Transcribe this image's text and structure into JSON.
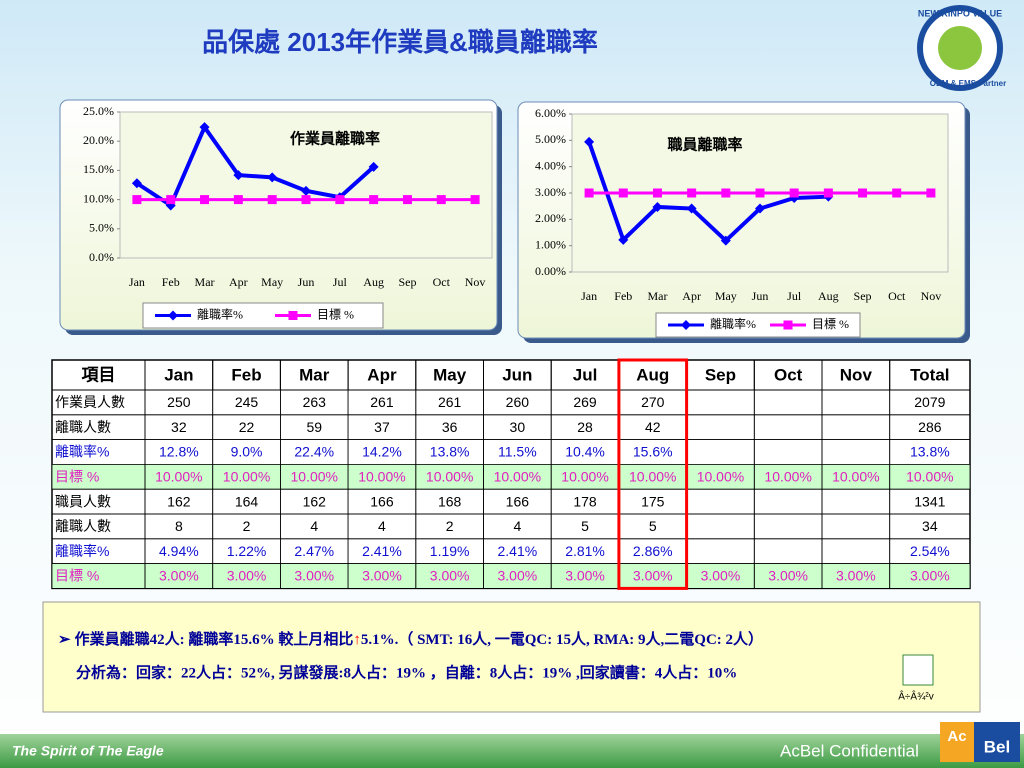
{
  "title": "品保處 2013年作業員&職員離職率",
  "chart_data": [
    {
      "type": "line",
      "title": "作業員離職率",
      "categories": [
        "Jan",
        "Feb",
        "Mar",
        "Apr",
        "May",
        "Jun",
        "Jul",
        "Aug",
        "Sep",
        "Oct",
        "Nov"
      ],
      "series": [
        {
          "name": "離職率%",
          "color": "#0000ff",
          "marker": "diamond",
          "values": [
            12.8,
            9.0,
            22.4,
            14.2,
            13.8,
            11.5,
            10.4,
            15.6,
            null,
            null,
            null
          ]
        },
        {
          "name": "目標 %",
          "color": "#ff00ff",
          "marker": "square",
          "values": [
            10,
            10,
            10,
            10,
            10,
            10,
            10,
            10,
            10,
            10,
            10
          ]
        }
      ],
      "ylim": [
        0,
        25
      ],
      "yticks": [
        {
          "value": 0,
          "label": "0.0%"
        },
        {
          "value": 5,
          "label": "5.0%"
        },
        {
          "value": 10,
          "label": "10.0%"
        },
        {
          "value": 15,
          "label": "15.0%"
        },
        {
          "value": 20,
          "label": "20.0%"
        },
        {
          "value": 25,
          "label": "25.0%"
        }
      ],
      "grid": false,
      "legend": "bottom"
    },
    {
      "type": "line",
      "title": "職員離職率",
      "categories": [
        "Jan",
        "Feb",
        "Mar",
        "Apr",
        "May",
        "Jun",
        "Jul",
        "Aug",
        "Sep",
        "Oct",
        "Nov"
      ],
      "series": [
        {
          "name": "離職率%",
          "color": "#0000ff",
          "marker": "diamond",
          "values": [
            4.94,
            1.22,
            2.47,
            2.41,
            1.19,
            2.41,
            2.81,
            2.86,
            null,
            null,
            null
          ]
        },
        {
          "name": "目標 %",
          "color": "#ff00ff",
          "marker": "square",
          "values": [
            3,
            3,
            3,
            3,
            3,
            3,
            3,
            3,
            3,
            3,
            3
          ]
        }
      ],
      "ylim": [
        0,
        6
      ],
      "yticks": [
        {
          "value": 0,
          "label": "0.00%"
        },
        {
          "value": 1,
          "label": "1.00%"
        },
        {
          "value": 2,
          "label": "2.00%"
        },
        {
          "value": 3,
          "label": "3.00%"
        },
        {
          "value": 4,
          "label": "4.00%"
        },
        {
          "value": 5,
          "label": "5.00%"
        },
        {
          "value": 6,
          "label": "6.00%"
        }
      ],
      "grid": false,
      "legend": "bottom"
    }
  ],
  "table": {
    "header": [
      "項目",
      "Jan",
      "Feb",
      "Mar",
      "Apr",
      "May",
      "Jun",
      "Jul",
      "Aug",
      "Sep",
      "Oct",
      "Nov",
      "Total"
    ],
    "rows": [
      [
        "作業員人數",
        "250",
        "245",
        "263",
        "261",
        "261",
        "260",
        "269",
        "270",
        null,
        null,
        null,
        "2079"
      ],
      [
        "離職人數",
        "32",
        "22",
        "59",
        "37",
        "36",
        "30",
        "28",
        "42",
        null,
        null,
        null,
        "286"
      ],
      [
        "離職率%",
        "12.8%",
        "9.0%",
        "22.4%",
        "14.2%",
        "13.8%",
        "11.5%",
        "10.4%",
        "15.6%",
        null,
        null,
        null,
        "13.8%"
      ],
      [
        "目標 %",
        "10.00%",
        "10.00%",
        "10.00%",
        "10.00%",
        "10.00%",
        "10.00%",
        "10.00%",
        "10.00%",
        "10.00%",
        "10.00%",
        "10.00%",
        "10.00%"
      ],
      [
        "職員人數",
        "162",
        "164",
        "162",
        "166",
        "168",
        "166",
        "178",
        "175",
        null,
        null,
        null,
        "1341"
      ],
      [
        "離職人數",
        "8",
        "2",
        "4",
        "4",
        "2",
        "4",
        "5",
        "5",
        null,
        null,
        null,
        "34"
      ],
      [
        "離職率%",
        "4.94%",
        "1.22%",
        "2.47%",
        "2.41%",
        "1.19%",
        "2.41%",
        "2.81%",
        "2.86%",
        null,
        null,
        null,
        "2.54%"
      ],
      [
        "目標 %",
        "3.00%",
        "3.00%",
        "3.00%",
        "3.00%",
        "3.00%",
        "3.00%",
        "3.00%",
        "3.00%",
        "3.00%",
        "3.00%",
        "3.00%",
        "3.00%"
      ]
    ]
  },
  "note": {
    "bullet": "➢",
    "line1": [
      "作業員離職42人: 離職率15.6% 較上月相比",
      "↑",
      "5.1%.（ SMT: 16人, 一電QC: 15人, RMA: 9人,二電QC: 2人）"
    ],
    "line2": "分析為：回家：22人占：52%, 另謀發展:8人占：19% ，自離：8人占：19% ,回家讀書：4人占：10%",
    "attachment": "Â÷Â¾²v"
  },
  "branding": {
    "logo_top": "NEW KINPO VALUE",
    "logo_bottom": "ODM & EMS Partner",
    "slogan": "The Spirit of The Eagle",
    "confidential": "AcBel Confidential",
    "brand_a": "Ac",
    "brand_b": "Bel"
  }
}
